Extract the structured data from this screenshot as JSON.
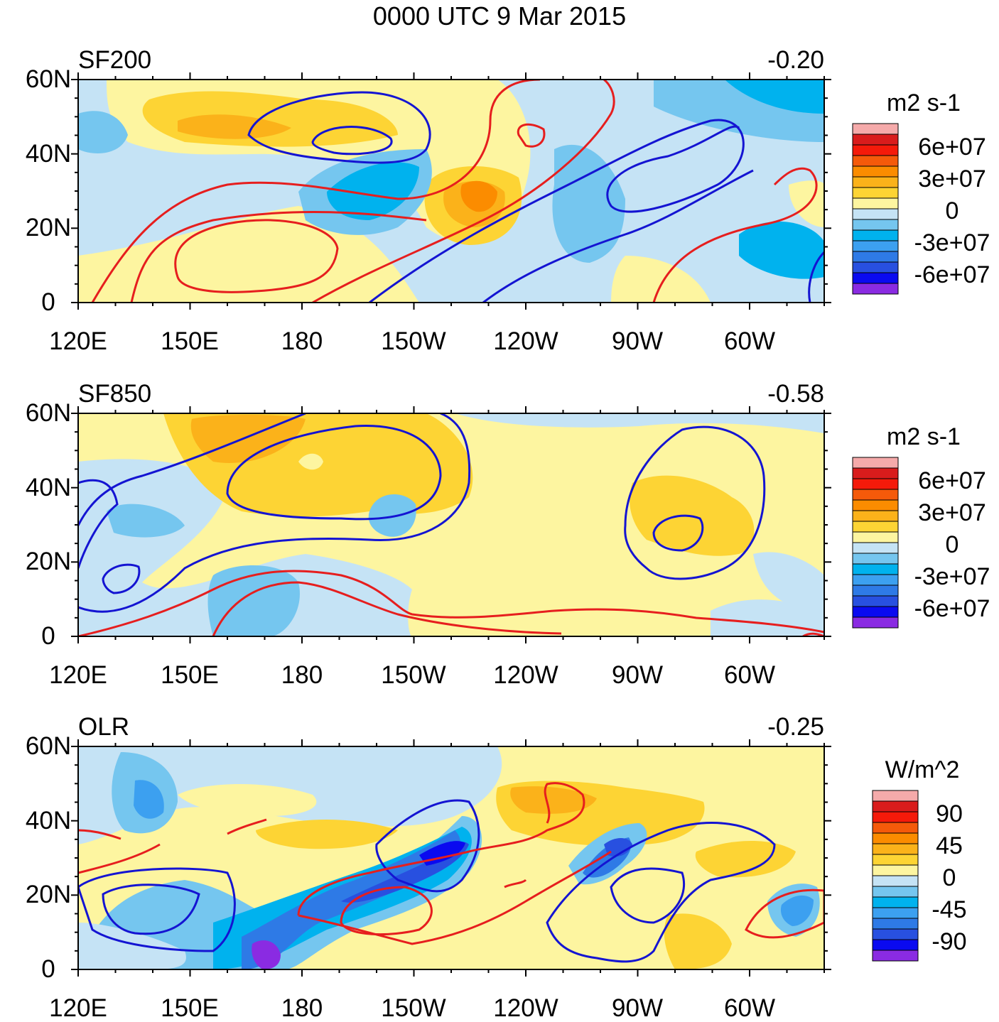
{
  "figure_title": "0000 UTC 9 Mar 2015",
  "chart_data": [
    {
      "type": "heatmap",
      "title": "SF200",
      "value": "-0.20",
      "units": "m2 s-1",
      "xticks": [
        "120E",
        "150E",
        "180",
        "150W",
        "120W",
        "90W",
        "60W"
      ],
      "yticks": [
        "0",
        "20N",
        "40N",
        "60N"
      ],
      "lon_range": [
        120,
        320
      ],
      "lat_range": [
        0,
        60
      ],
      "colorbar_labels": [
        "6e+07",
        "3e+07",
        "0",
        "-3e+07",
        "-6e+07"
      ],
      "colors": [
        "#f5aaaa",
        "#d91c1c",
        "#f51a0a",
        "#f55a0a",
        "#fb8c00",
        "#fbb21a",
        "#fdd434",
        "#fdf5a0",
        "#c5e3f5",
        "#75c6ef",
        "#00b2ee",
        "#3ca0f0",
        "#2e7ae6",
        "#2850e0",
        "#0a0af0",
        "#8a2be2"
      ],
      "contour_colors": {
        "positive": "#e61e1e",
        "negative": "#1414d2"
      }
    },
    {
      "type": "heatmap",
      "title": "SF850",
      "value": "-0.58",
      "units": "m2 s-1",
      "xticks": [
        "120E",
        "150E",
        "180",
        "150W",
        "120W",
        "90W",
        "60W"
      ],
      "yticks": [
        "0",
        "20N",
        "40N",
        "60N"
      ],
      "lon_range": [
        120,
        320
      ],
      "lat_range": [
        0,
        60
      ],
      "colorbar_labels": [
        "6e+07",
        "3e+07",
        "0",
        "-3e+07",
        "-6e+07"
      ],
      "colors": [
        "#f5aaaa",
        "#d91c1c",
        "#f51a0a",
        "#f55a0a",
        "#fb8c00",
        "#fbb21a",
        "#fdd434",
        "#fdf5a0",
        "#c5e3f5",
        "#75c6ef",
        "#00b2ee",
        "#3ca0f0",
        "#2e7ae6",
        "#2850e0",
        "#0a0af0",
        "#8a2be2"
      ],
      "contour_colors": {
        "positive": "#e61e1e",
        "negative": "#1414d2"
      }
    },
    {
      "type": "heatmap",
      "title": "OLR",
      "value": "-0.25",
      "units": "W/m^2",
      "xticks": [
        "120E",
        "150E",
        "180",
        "150W",
        "120W",
        "90W",
        "60W"
      ],
      "yticks": [
        "0",
        "20N",
        "40N",
        "60N"
      ],
      "lon_range": [
        120,
        320
      ],
      "lat_range": [
        0,
        60
      ],
      "colorbar_labels": [
        "90",
        "45",
        "0",
        "-45",
        "-90"
      ],
      "colors": [
        "#f5aaaa",
        "#d91c1c",
        "#f51a0a",
        "#f55a0a",
        "#fb8c00",
        "#fbb21a",
        "#fdd434",
        "#fdf5a0",
        "#c5e3f5",
        "#75c6ef",
        "#00b2ee",
        "#3ca0f0",
        "#2e7ae6",
        "#2850e0",
        "#0a0af0",
        "#8a2be2"
      ],
      "contour_colors": {
        "positive": "#e61e1e",
        "negative": "#1414d2"
      }
    }
  ]
}
